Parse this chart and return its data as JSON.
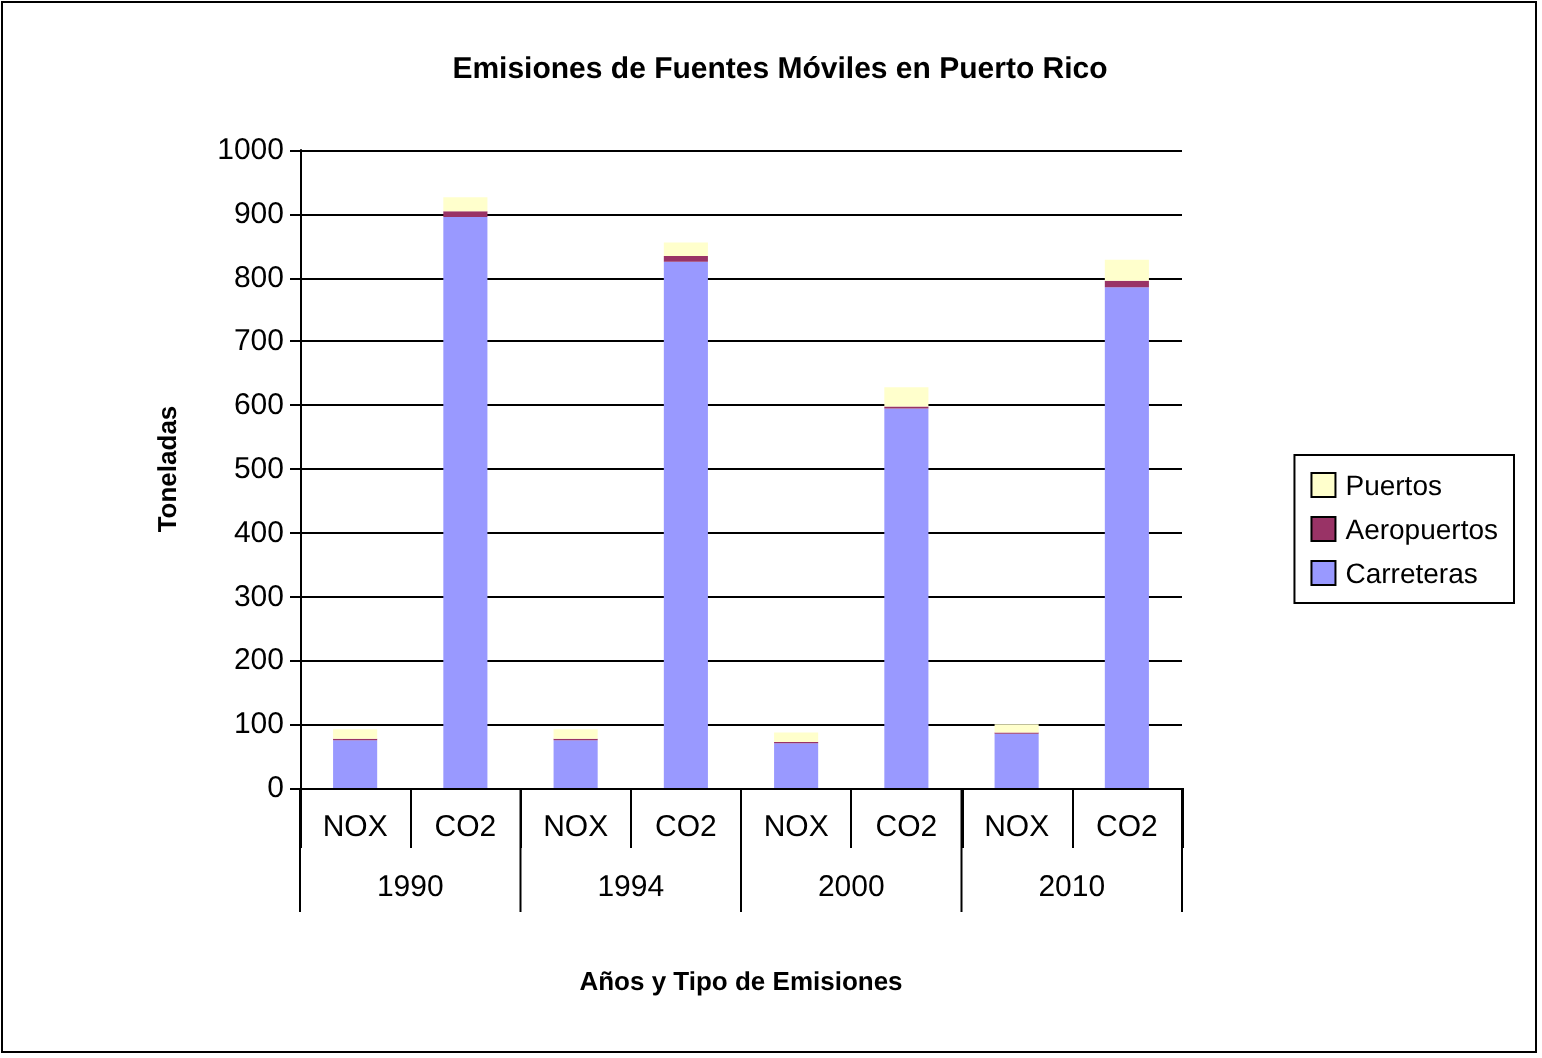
{
  "chart_data": {
    "type": "bar",
    "title": "Emisiones de Fuentes Móviles en Puerto Rico",
    "xlabel": "Años y Tipo de Emisiones",
    "ylabel": "Toneladas",
    "categories": [
      "NOX",
      "CO2",
      "NOX",
      "CO2",
      "NOX",
      "CO2",
      "NOX",
      "CO2"
    ],
    "annotations": [
      "1990",
      "1994",
      "2000",
      "2010"
    ],
    "stacked": true,
    "series": [
      {
        "name": "Carreteras",
        "color": "#9999ff",
        "values": [
          75,
          895,
          75,
          825,
          70,
          595,
          85,
          785
        ]
      },
      {
        "name": "Aeropuertos",
        "color": "#993366",
        "values": [
          2,
          9,
          2,
          9,
          2,
          3,
          2,
          10
        ]
      },
      {
        "name": "Puertos",
        "color": "#ffffcc",
        "values": [
          15,
          22,
          15,
          21,
          15,
          30,
          13,
          33
        ]
      }
    ],
    "ylim": [
      0,
      1000
    ],
    "yticks": [
      0,
      100,
      200,
      300,
      400,
      500,
      600,
      700,
      800,
      900,
      1000
    ],
    "grid": "y",
    "legend": "right"
  }
}
